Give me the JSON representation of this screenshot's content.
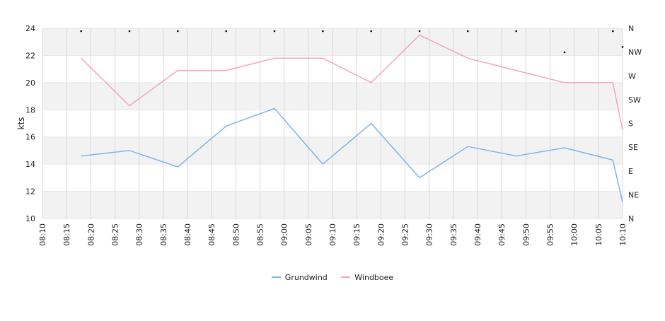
{
  "chart_data": {
    "type": "line",
    "title": "",
    "ylabel": "kts",
    "ylim": [
      10,
      24
    ],
    "y_ticks": [
      10,
      12,
      14,
      16,
      18,
      20,
      22,
      24
    ],
    "x_ticks": [
      "08:10",
      "08:15",
      "08:20",
      "08:25",
      "08:30",
      "08:35",
      "08:40",
      "08:45",
      "08:50",
      "08:55",
      "09:00",
      "09:05",
      "09:10",
      "09:15",
      "09:20",
      "09:25",
      "09:30",
      "09:35",
      "09:40",
      "09:45",
      "09:50",
      "09:55",
      "10:00",
      "10:05",
      "10:10"
    ],
    "x_range": [
      "08:10",
      "10:10"
    ],
    "direction_axis": {
      "labels": [
        "N",
        "NW",
        "W",
        "SW",
        "S",
        "SE",
        "E",
        "NE",
        "N"
      ],
      "range_degrees": [
        0,
        360
      ]
    },
    "grid": true,
    "banded_background": true,
    "legend_position": "bottom",
    "x": [
      "08:18",
      "08:28",
      "08:38",
      "08:48",
      "08:58",
      "09:08",
      "09:18",
      "09:28",
      "09:38",
      "09:48",
      "09:58",
      "10:08",
      "10:10"
    ],
    "series": [
      {
        "name": "Grundwind",
        "color": "#7cb5ec",
        "values": [
          14.6,
          15.0,
          13.8,
          16.8,
          18.1,
          14.0,
          17.0,
          13.0,
          15.3,
          14.6,
          15.2,
          14.3,
          11.2
        ]
      },
      {
        "name": "Windboee",
        "color": "#f7a1c8",
        "values": [
          21.8,
          18.3,
          20.9,
          20.9,
          21.8,
          21.8,
          20.0,
          23.5,
          21.8,
          20.9,
          20.0,
          20.0,
          16.5
        ]
      }
    ],
    "direction_points": {
      "x": [
        "08:18",
        "08:28",
        "08:38",
        "08:48",
        "08:58",
        "09:08",
        "09:18",
        "09:28",
        "09:38",
        "09:48",
        "09:58",
        "10:08",
        "10:10"
      ],
      "degrees": [
        5,
        5,
        10,
        0,
        5,
        0,
        0,
        0,
        0,
        0,
        320,
        0,
        330
      ]
    }
  }
}
